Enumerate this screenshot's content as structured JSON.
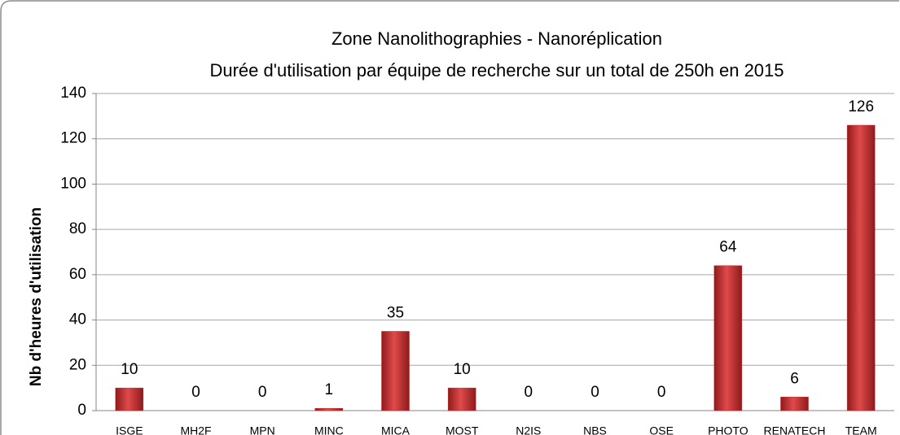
{
  "chart_data": {
    "type": "bar",
    "title": "Zone Nanolithographies - Nanoréplication",
    "subtitle": "Durée d'utilisation par équipe de recherche sur un total de 250h en 2015",
    "y_label": "Nb d'heures d'utilisation",
    "categories": [
      "ISGE",
      "MH2F",
      "MPN",
      "MINC",
      "MICA",
      "MOST",
      "N2IS",
      "NBS",
      "OSE",
      "PHOTO",
      "RENATECH",
      "TEAM"
    ],
    "values": [
      10,
      0,
      0,
      1,
      35,
      10,
      0,
      0,
      0,
      64,
      6,
      126
    ],
    "color": "#c0282a",
    "ylim": [
      0,
      140
    ],
    "yticks": [
      0,
      20,
      40,
      60,
      80,
      100,
      120,
      140
    ],
    "grid": true
  }
}
